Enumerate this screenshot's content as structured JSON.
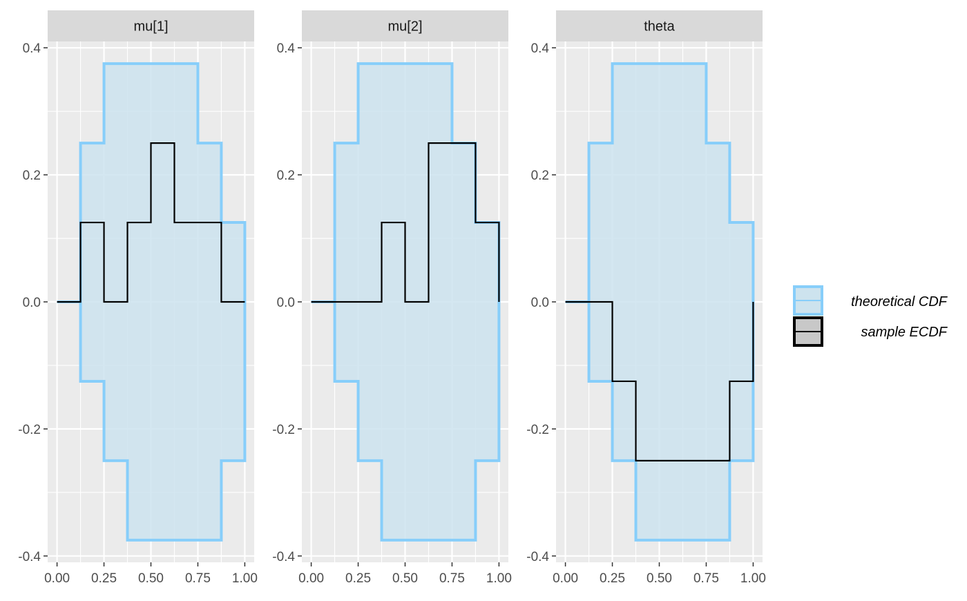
{
  "chart_data": {
    "type": "line",
    "panels": [
      {
        "strip_label": "mu[1]",
        "ecdf_x": [
          0,
          0.125,
          0.125,
          0.25,
          0.25,
          0.375,
          0.375,
          0.5,
          0.5,
          0.625,
          0.625,
          0.875,
          0.875,
          1.0
        ],
        "ecdf_y": [
          0,
          0,
          0.125,
          0.125,
          0,
          0,
          0.125,
          0.125,
          0.25,
          0.25,
          0.125,
          0.125,
          0,
          0
        ]
      },
      {
        "strip_label": "mu[2]",
        "ecdf_x": [
          0,
          0.375,
          0.375,
          0.5,
          0.5,
          0.625,
          0.625,
          0.875,
          0.875,
          1.0,
          1.0
        ],
        "ecdf_y": [
          0,
          0,
          0.125,
          0.125,
          0,
          0,
          0.25,
          0.25,
          0.125,
          0.125,
          0
        ]
      },
      {
        "strip_label": "theta",
        "ecdf_x": [
          0,
          0.25,
          0.25,
          0.375,
          0.375,
          0.875,
          0.875,
          1.0,
          1.0
        ],
        "ecdf_y": [
          0,
          0,
          -0.125,
          -0.125,
          -0.25,
          -0.25,
          -0.125,
          -0.125,
          0
        ]
      }
    ],
    "band": {
      "x": [
        0,
        0.125,
        0.25,
        0.375,
        0.5,
        0.625,
        0.75,
        0.875,
        1.0
      ],
      "upper": [
        0,
        0.25,
        0.375,
        0.375,
        0.375,
        0.375,
        0.25,
        0.125,
        0
      ],
      "lower": [
        0,
        -0.125,
        -0.25,
        -0.375,
        -0.375,
        -0.375,
        -0.375,
        -0.25,
        0
      ]
    },
    "xlim": [
      -0.05,
      1.05
    ],
    "ylim": [
      -0.41,
      0.41
    ],
    "x_ticks": [
      0,
      0.25,
      0.5,
      0.75,
      1.0
    ],
    "x_tick_labels": [
      "0.00",
      "0.25",
      "0.50",
      "0.75",
      "1.00"
    ],
    "y_ticks": [
      -0.4,
      -0.2,
      0.0,
      0.2,
      0.4
    ],
    "y_tick_labels": [
      "-0.4",
      "-0.2",
      "0.0",
      "0.2",
      "0.4"
    ],
    "legend": {
      "position": "right",
      "entries": [
        {
          "label": "theoretical CDF",
          "stroke": "#87CEFA",
          "fill": "#CDE3EE"
        },
        {
          "label": "sample ECDF",
          "stroke": "#000000",
          "fill": "#C8C8C8"
        }
      ]
    },
    "grid": true,
    "colors": {
      "panel_background": "#EBEBEB",
      "strip_background": "#D9D9D9",
      "grid": "#FFFFFF",
      "band_fill": "#CDE3EE",
      "band_stroke": "#87CEFA",
      "ecdf": "#000000",
      "axis_text": "#4D4D4D",
      "strip_text": "#1A1A1A"
    }
  }
}
